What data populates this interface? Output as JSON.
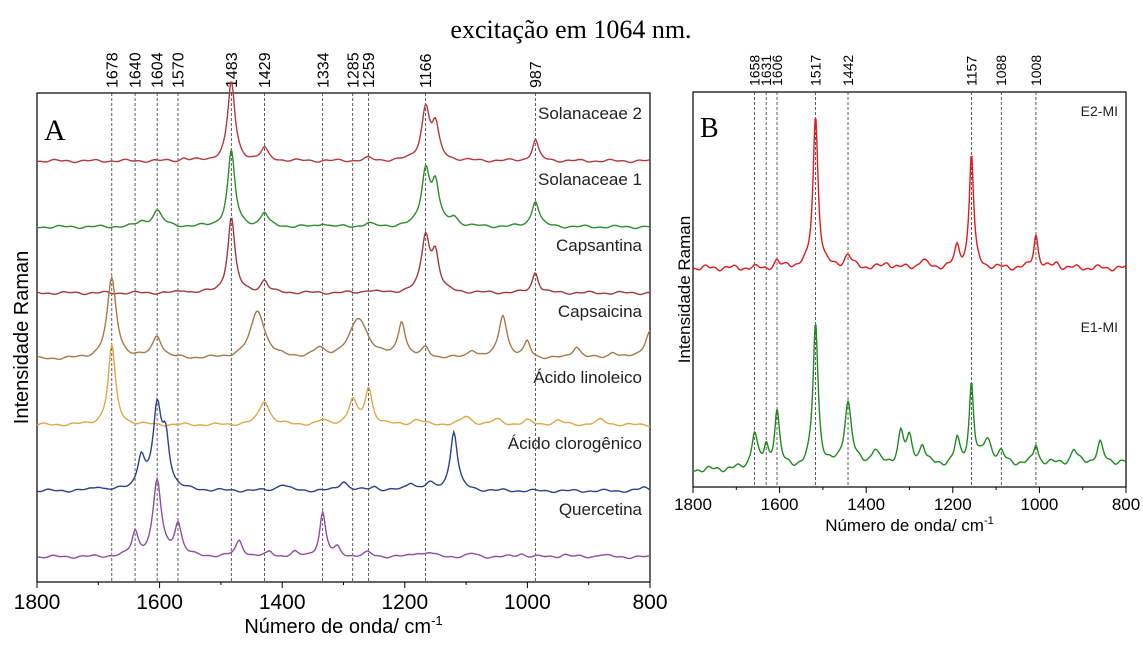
{
  "caption": "excitação em 1064 nm.",
  "chart_data": [
    {
      "type": "line",
      "panel_label": "A",
      "xlabel": "Número de onda/ cm",
      "xlabel_superscript": "-1",
      "ylabel": "Intensidade Raman",
      "xlim": [
        1800,
        800
      ],
      "x_reversed": true,
      "x_ticks": [
        1800,
        1600,
        1400,
        1200,
        1000,
        800
      ],
      "y_ticks_shown": false,
      "reference_lines": [
        1678,
        1640,
        1604,
        1570,
        1483,
        1429,
        1334,
        1285,
        1259,
        1166,
        987
      ],
      "series": [
        {
          "name": "Solanaceae 2",
          "color": "#b3393d",
          "offset": 7,
          "peaks": [
            [
              1483,
              1.0,
              7
            ],
            [
              1429,
              0.15,
              7
            ],
            [
              1166,
              0.65,
              8
            ],
            [
              1150,
              0.4,
              7
            ],
            [
              987,
              0.26,
              6
            ],
            [
              1560,
              0.03,
              6
            ],
            [
              1260,
              0.03,
              8
            ]
          ]
        },
        {
          "name": "Solanaceae 1",
          "color": "#2e8b2e",
          "offset": 6,
          "peaks": [
            [
              1483,
              0.95,
              7
            ],
            [
              1429,
              0.17,
              7
            ],
            [
              1166,
              0.7,
              8
            ],
            [
              1150,
              0.5,
              7
            ],
            [
              1604,
              0.2,
              10
            ],
            [
              1630,
              0.05,
              8
            ],
            [
              1120,
              0.1,
              8
            ],
            [
              987,
              0.33,
              7
            ],
            [
              1334,
              0.05,
              6
            ],
            [
              1260,
              0.04,
              8
            ]
          ]
        },
        {
          "name": "Capsantina",
          "color": "#a0393c",
          "offset": 5,
          "peaks": [
            [
              1483,
              0.95,
              7
            ],
            [
              1429,
              0.15,
              7
            ],
            [
              1166,
              0.7,
              8
            ],
            [
              1150,
              0.45,
              7
            ],
            [
              987,
              0.26,
              6
            ],
            [
              1560,
              0.03,
              6
            ],
            [
              1260,
              0.03,
              8
            ]
          ]
        },
        {
          "name": "Capsaicina",
          "color": "#a47a4a",
          "offset": 4,
          "peaks": [
            [
              1678,
              1.0,
              9
            ],
            [
              1604,
              0.28,
              9
            ],
            [
              1440,
              0.6,
              14
            ],
            [
              1275,
              0.5,
              18
            ],
            [
              1205,
              0.45,
              7
            ],
            [
              1166,
              0.12,
              7
            ],
            [
              1040,
              0.55,
              8
            ],
            [
              1000,
              0.2,
              6
            ],
            [
              920,
              0.15,
              8
            ],
            [
              800,
              0.35,
              10
            ],
            [
              1340,
              0.1,
              10
            ],
            [
              1090,
              0.1,
              8
            ],
            [
              860,
              0.08,
              8
            ]
          ]
        },
        {
          "name": "Ácido linoleico",
          "color": "#e0a64a",
          "offset": 3,
          "peaks": [
            [
              1678,
              1.0,
              7
            ],
            [
              1429,
              0.3,
              10
            ],
            [
              1285,
              0.3,
              8
            ],
            [
              1259,
              0.45,
              7
            ],
            [
              1100,
              0.1,
              10
            ],
            [
              1050,
              0.06,
              10
            ],
            [
              1000,
              0.05,
              8
            ],
            [
              950,
              0.05,
              10
            ],
            [
              880,
              0.06,
              10
            ],
            [
              1334,
              0.05,
              8
            ],
            [
              1180,
              0.06,
              10
            ]
          ]
        },
        {
          "name": "Ácido clorogênico",
          "color": "#2e3f8f",
          "offset": 2,
          "peaks": [
            [
              1630,
              0.4,
              7
            ],
            [
              1604,
              1.0,
              8
            ],
            [
              1590,
              0.6,
              7
            ],
            [
              1120,
              0.75,
              7
            ],
            [
              1700,
              0.05,
              8
            ],
            [
              1400,
              0.08,
              10
            ],
            [
              1300,
              0.12,
              8
            ],
            [
              1250,
              0.05,
              8
            ],
            [
              1190,
              0.1,
              8
            ],
            [
              1160,
              0.08,
              8
            ],
            [
              810,
              0.04,
              8
            ]
          ]
        },
        {
          "name": "Quercetina",
          "color": "#8e4ea3",
          "offset": 1,
          "peaks": [
            [
              1640,
              0.3,
              6
            ],
            [
              1604,
              0.95,
              8
            ],
            [
              1570,
              0.4,
              7
            ],
            [
              1470,
              0.2,
              7
            ],
            [
              1334,
              0.55,
              6
            ],
            [
              1310,
              0.1,
              6
            ],
            [
              1420,
              0.06,
              6
            ],
            [
              1380,
              0.05,
              6
            ],
            [
              1260,
              0.05,
              8
            ],
            [
              1180,
              0.05,
              8
            ],
            [
              1160,
              0.05,
              8
            ],
            [
              1090,
              0.04,
              8
            ],
            [
              1010,
              0.04,
              8
            ],
            [
              940,
              0.03,
              8
            ],
            [
              880,
              0.03,
              8
            ]
          ]
        }
      ]
    },
    {
      "type": "line",
      "panel_label": "B",
      "xlabel": "Número de onda/ cm",
      "xlabel_superscript": "-1",
      "ylabel": "Intensidade Raman",
      "xlim": [
        1800,
        800
      ],
      "x_reversed": true,
      "x_ticks": [
        1800,
        1600,
        1400,
        1200,
        1000,
        800
      ],
      "y_ticks_shown": false,
      "reference_lines": [
        1658,
        1631,
        1606,
        1517,
        1442,
        1157,
        1088,
        1008
      ],
      "series": [
        {
          "name": "E2-MI",
          "color": "#e31a1c",
          "offset": 2,
          "peaks": [
            [
              1517,
              1.0,
              7
            ],
            [
              1157,
              0.75,
              6
            ],
            [
              1008,
              0.22,
              6
            ],
            [
              1442,
              0.08,
              10
            ],
            [
              1606,
              0.04,
              6
            ],
            [
              1190,
              0.13,
              7
            ],
            [
              1270,
              0.05,
              10
            ],
            [
              1350,
              0.03,
              10
            ],
            [
              960,
              0.03,
              8
            ],
            [
              1580,
              0.02,
              6
            ]
          ]
        },
        {
          "name": "E1-MI",
          "color": "#1f8b1f",
          "offset": 1,
          "peaks": [
            [
              1517,
              0.9,
              7
            ],
            [
              1157,
              0.5,
              6
            ],
            [
              1606,
              0.35,
              7
            ],
            [
              1442,
              0.4,
              10
            ],
            [
              1658,
              0.22,
              8
            ],
            [
              1631,
              0.12,
              6
            ],
            [
              1320,
              0.2,
              8
            ],
            [
              1300,
              0.15,
              8
            ],
            [
              1270,
              0.12,
              8
            ],
            [
              1380,
              0.1,
              10
            ],
            [
              1190,
              0.15,
              7
            ],
            [
              1120,
              0.15,
              12
            ],
            [
              1008,
              0.12,
              6
            ],
            [
              860,
              0.12,
              8
            ],
            [
              920,
              0.08,
              8
            ],
            [
              1088,
              0.06,
              8
            ]
          ]
        }
      ]
    }
  ]
}
